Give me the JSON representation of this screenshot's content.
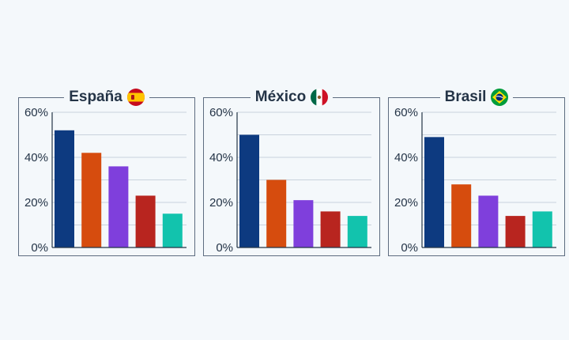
{
  "chart_data": [
    {
      "type": "bar",
      "title": "España",
      "flag_icon": "spain-flag-icon",
      "ylim": [
        0,
        60
      ],
      "yticks": [
        "60%",
        "40%",
        "20%",
        "0%"
      ],
      "ytick_values": [
        60,
        40,
        20,
        0
      ],
      "grid": true,
      "values": [
        52,
        42,
        36,
        23,
        15
      ],
      "colors": [
        "#0d3a80",
        "#d64c0e",
        "#7f3fdc",
        "#b8251f",
        "#12c3ad"
      ]
    },
    {
      "type": "bar",
      "title": "México",
      "flag_icon": "mexico-flag-icon",
      "ylim": [
        0,
        60
      ],
      "yticks": [
        "60%",
        "40%",
        "20%",
        "0%"
      ],
      "ytick_values": [
        60,
        40,
        20,
        0
      ],
      "grid": true,
      "values": [
        50,
        30,
        21,
        16,
        14
      ],
      "colors": [
        "#0d3a80",
        "#d64c0e",
        "#7f3fdc",
        "#b8251f",
        "#12c3ad"
      ]
    },
    {
      "type": "bar",
      "title": "Brasil",
      "flag_icon": "brazil-flag-icon",
      "ylim": [
        0,
        60
      ],
      "yticks": [
        "60%",
        "40%",
        "20%",
        "0%"
      ],
      "ytick_values": [
        60,
        40,
        20,
        0
      ],
      "grid": true,
      "values": [
        49,
        28,
        23,
        14,
        16
      ],
      "colors": [
        "#0d3a80",
        "#d64c0e",
        "#7f3fdc",
        "#b8251f",
        "#12c3ad"
      ]
    }
  ]
}
